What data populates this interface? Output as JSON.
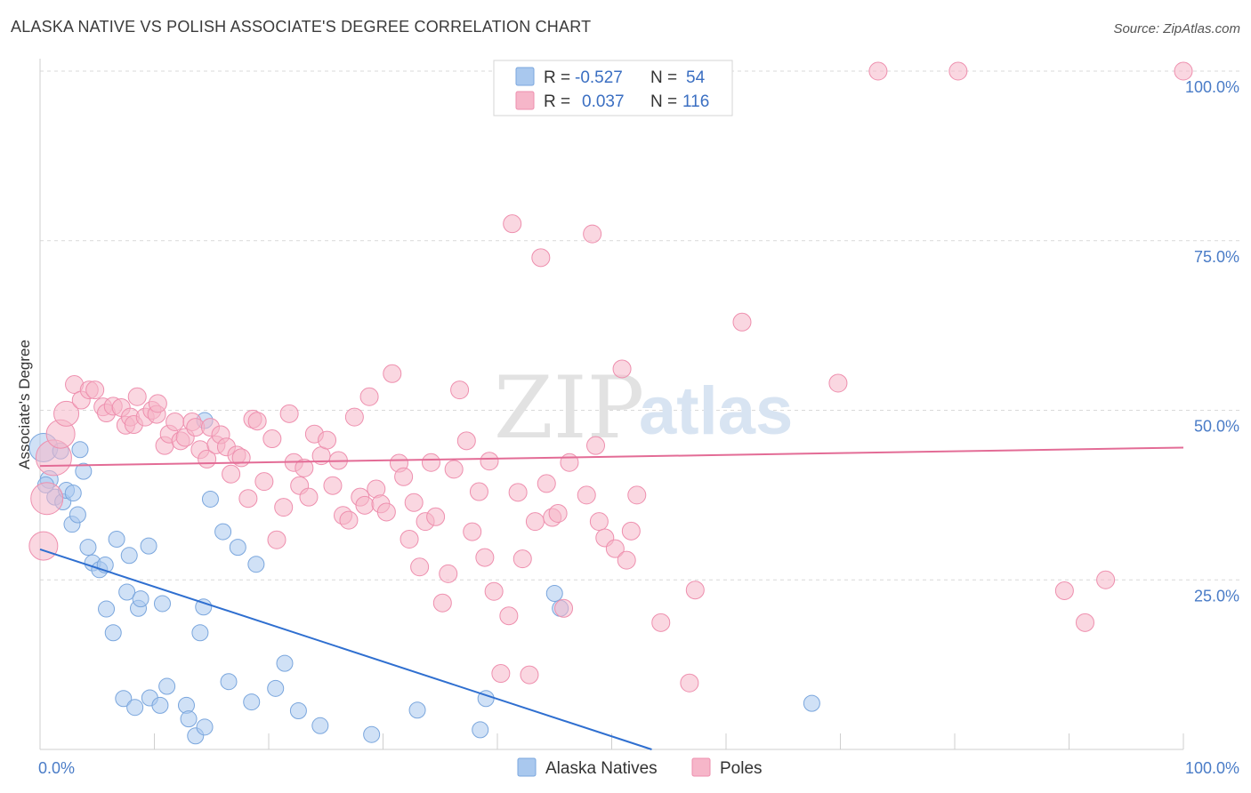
{
  "title": "ALASKA NATIVE VS POLISH ASSOCIATE'S DEGREE CORRELATION CHART",
  "source": "Source: ZipAtlas.com",
  "watermark": {
    "zip": "ZIP",
    "atlas": "atlas"
  },
  "legend": {
    "rows": [
      {
        "r_label": "R =",
        "r_value": "-0.527",
        "n_label": "N =",
        "n_value": "54"
      },
      {
        "r_label": "R =",
        "r_value": "0.037",
        "n_label": "N =",
        "n_value": "116"
      }
    ]
  },
  "bottom_legend": [
    "Alaska Natives",
    "Poles"
  ],
  "colors": {
    "blue_fill": "#a9c8ee",
    "blue_stroke": "#7aa6dd",
    "blue_line": "#2f6fd0",
    "pink_fill": "#f6b6c9",
    "pink_stroke": "#ee8fae",
    "pink_line": "#e36c96",
    "grid": "#d9d9d9",
    "tick_text": "#4a7cc7"
  },
  "chart_data": {
    "type": "scatter",
    "title": "ALASKA NATIVE VS POLISH ASSOCIATE'S DEGREE CORRELATION CHART",
    "xlabel": "",
    "ylabel": "Associate's Degree",
    "xlim": [
      0,
      100
    ],
    "ylim": [
      0,
      100
    ],
    "x_tick_labels": [
      "0.0%",
      "100.0%"
    ],
    "y_tick_labels": [
      "25.0%",
      "50.0%",
      "75.0%",
      "100.0%"
    ],
    "y_ticks": [
      25,
      50,
      75,
      100
    ],
    "grid": "dashed horizontal",
    "legend_position": "top-center",
    "series": [
      {
        "name": "Alaska Natives",
        "r": -0.527,
        "n": 54,
        "trend": {
          "x": [
            0,
            53.5
          ],
          "y": [
            29.5,
            0.0
          ]
        },
        "points": [
          [
            0.3,
            44.5,
            16
          ],
          [
            0.8,
            39.8,
            10
          ],
          [
            1.3,
            37.2,
            9
          ],
          [
            1.8,
            44.0,
            9
          ],
          [
            2.0,
            36.5,
            9
          ],
          [
            2.3,
            38.2,
            9
          ],
          [
            2.8,
            33.2,
            9
          ],
          [
            2.9,
            37.8,
            9
          ],
          [
            3.3,
            34.6,
            9
          ],
          [
            3.5,
            44.2,
            9
          ],
          [
            3.8,
            41.0,
            9
          ],
          [
            4.2,
            29.8,
            9
          ],
          [
            4.6,
            27.5,
            9
          ],
          [
            5.2,
            26.5,
            9
          ],
          [
            5.7,
            27.2,
            9
          ],
          [
            5.8,
            20.7,
            9
          ],
          [
            6.4,
            17.2,
            9
          ],
          [
            6.7,
            31.0,
            9
          ],
          [
            7.3,
            7.5,
            9
          ],
          [
            7.6,
            23.2,
            9
          ],
          [
            7.8,
            28.6,
            9
          ],
          [
            8.3,
            6.2,
            9
          ],
          [
            8.6,
            20.8,
            9
          ],
          [
            8.8,
            22.2,
            9
          ],
          [
            9.5,
            30.0,
            9
          ],
          [
            9.6,
            7.6,
            9
          ],
          [
            10.5,
            6.5,
            9
          ],
          [
            10.7,
            21.5,
            9
          ],
          [
            11.1,
            9.3,
            9
          ],
          [
            12.8,
            6.5,
            9
          ],
          [
            13.0,
            4.5,
            9
          ],
          [
            13.6,
            2.0,
            9
          ],
          [
            14.0,
            17.2,
            9
          ],
          [
            14.3,
            21.0,
            9
          ],
          [
            14.4,
            3.3,
            9
          ],
          [
            14.9,
            36.9,
            9
          ],
          [
            14.4,
            48.5,
            9
          ],
          [
            16.0,
            32.1,
            9
          ],
          [
            16.5,
            10.0,
            9
          ],
          [
            17.3,
            29.8,
            9
          ],
          [
            18.9,
            27.3,
            9
          ],
          [
            18.5,
            7.0,
            9
          ],
          [
            20.6,
            9.0,
            9
          ],
          [
            21.4,
            12.7,
            9
          ],
          [
            22.6,
            5.7,
            9
          ],
          [
            24.5,
            3.5,
            9
          ],
          [
            29.0,
            2.2,
            9
          ],
          [
            33.0,
            5.8,
            9
          ],
          [
            38.5,
            2.9,
            9
          ],
          [
            39.0,
            7.5,
            9
          ],
          [
            45.0,
            23.0,
            9
          ],
          [
            45.5,
            20.8,
            9
          ],
          [
            67.5,
            6.8,
            9
          ],
          [
            0.5,
            39.0,
            9
          ]
        ]
      },
      {
        "name": "Poles",
        "r": 0.037,
        "n": 116,
        "trend": {
          "x": [
            0,
            100
          ],
          "y": [
            41.8,
            44.5
          ]
        },
        "points": [
          [
            0.3,
            30.0,
            16
          ],
          [
            0.6,
            37.0,
            18
          ],
          [
            1.2,
            43.0,
            20
          ],
          [
            1.8,
            46.5,
            16
          ],
          [
            2.3,
            49.5,
            14
          ],
          [
            3.0,
            53.8,
            10
          ],
          [
            3.6,
            51.5,
            10
          ],
          [
            4.3,
            53.0,
            10
          ],
          [
            4.8,
            53.0,
            10
          ],
          [
            5.5,
            50.5,
            10
          ],
          [
            5.8,
            49.6,
            10
          ],
          [
            6.4,
            50.6,
            10
          ],
          [
            7.1,
            50.4,
            10
          ],
          [
            7.5,
            47.8,
            10
          ],
          [
            7.9,
            49.0,
            10
          ],
          [
            8.2,
            47.9,
            10
          ],
          [
            8.5,
            52.0,
            10
          ],
          [
            9.2,
            49.0,
            10
          ],
          [
            9.8,
            50.0,
            10
          ],
          [
            10.2,
            49.4,
            10
          ],
          [
            10.3,
            51.0,
            10
          ],
          [
            10.9,
            44.8,
            10
          ],
          [
            11.3,
            46.5,
            10
          ],
          [
            11.8,
            48.3,
            10
          ],
          [
            12.3,
            45.5,
            10
          ],
          [
            12.7,
            46.0,
            10
          ],
          [
            13.3,
            48.3,
            10
          ],
          [
            13.6,
            47.5,
            10
          ],
          [
            14.0,
            44.2,
            10
          ],
          [
            14.6,
            42.8,
            10
          ],
          [
            14.9,
            47.5,
            10
          ],
          [
            15.4,
            44.9,
            10
          ],
          [
            15.8,
            46.4,
            10
          ],
          [
            16.3,
            44.6,
            10
          ],
          [
            16.7,
            40.6,
            10
          ],
          [
            17.2,
            43.4,
            10
          ],
          [
            17.6,
            43.0,
            10
          ],
          [
            18.2,
            37.0,
            10
          ],
          [
            18.6,
            48.7,
            10
          ],
          [
            19.0,
            48.4,
            10
          ],
          [
            19.6,
            39.5,
            10
          ],
          [
            20.3,
            45.8,
            10
          ],
          [
            20.7,
            30.9,
            10
          ],
          [
            21.3,
            35.7,
            10
          ],
          [
            21.8,
            49.5,
            10
          ],
          [
            22.2,
            42.3,
            10
          ],
          [
            22.7,
            38.9,
            10
          ],
          [
            23.1,
            41.5,
            10
          ],
          [
            23.5,
            37.2,
            10
          ],
          [
            24.0,
            46.5,
            10
          ],
          [
            24.6,
            43.3,
            10
          ],
          [
            25.1,
            45.6,
            10
          ],
          [
            25.6,
            38.9,
            10
          ],
          [
            26.1,
            42.6,
            10
          ],
          [
            26.5,
            34.5,
            10
          ],
          [
            27.0,
            33.8,
            10
          ],
          [
            27.5,
            49.0,
            10
          ],
          [
            28.0,
            37.2,
            10
          ],
          [
            28.4,
            36.0,
            10
          ],
          [
            28.8,
            52.0,
            10
          ],
          [
            29.4,
            38.4,
            10
          ],
          [
            29.8,
            36.2,
            10
          ],
          [
            30.3,
            35.0,
            10
          ],
          [
            30.8,
            55.4,
            10
          ],
          [
            31.4,
            42.2,
            10
          ],
          [
            31.8,
            40.2,
            10
          ],
          [
            32.3,
            31.0,
            10
          ],
          [
            32.7,
            36.4,
            10
          ],
          [
            33.2,
            26.9,
            10
          ],
          [
            33.7,
            33.6,
            10
          ],
          [
            34.2,
            42.3,
            10
          ],
          [
            34.6,
            34.3,
            10
          ],
          [
            35.2,
            21.6,
            10
          ],
          [
            35.7,
            25.9,
            10
          ],
          [
            36.2,
            41.3,
            10
          ],
          [
            36.7,
            53.0,
            10
          ],
          [
            37.3,
            45.5,
            10
          ],
          [
            37.8,
            32.1,
            10
          ],
          [
            38.4,
            38.0,
            10
          ],
          [
            38.9,
            28.3,
            10
          ],
          [
            39.3,
            42.5,
            10
          ],
          [
            39.7,
            23.3,
            10
          ],
          [
            40.3,
            11.2,
            10
          ],
          [
            41.0,
            19.7,
            10
          ],
          [
            41.3,
            77.5,
            10
          ],
          [
            41.8,
            37.9,
            10
          ],
          [
            42.2,
            28.1,
            10
          ],
          [
            42.8,
            11.0,
            10
          ],
          [
            43.3,
            33.6,
            10
          ],
          [
            43.8,
            72.5,
            10
          ],
          [
            44.3,
            39.2,
            10
          ],
          [
            44.8,
            34.2,
            10
          ],
          [
            45.3,
            34.8,
            10
          ],
          [
            45.8,
            20.8,
            10
          ],
          [
            46.3,
            42.3,
            10
          ],
          [
            47.8,
            37.5,
            10
          ],
          [
            48.3,
            76.0,
            10
          ],
          [
            48.6,
            44.8,
            10
          ],
          [
            48.9,
            33.6,
            10
          ],
          [
            49.4,
            31.2,
            10
          ],
          [
            50.3,
            29.6,
            10
          ],
          [
            50.9,
            56.1,
            10
          ],
          [
            51.3,
            27.9,
            10
          ],
          [
            51.7,
            32.2,
            10
          ],
          [
            52.2,
            37.5,
            10
          ],
          [
            54.3,
            18.7,
            10
          ],
          [
            56.8,
            9.8,
            10
          ],
          [
            57.3,
            23.5,
            10
          ],
          [
            61.4,
            63.0,
            10
          ],
          [
            69.8,
            54.0,
            10
          ],
          [
            73.3,
            100.0,
            10
          ],
          [
            80.3,
            100.0,
            10
          ],
          [
            89.6,
            23.4,
            10
          ],
          [
            91.4,
            18.7,
            10
          ],
          [
            93.2,
            25.0,
            10
          ],
          [
            100.0,
            100.0,
            10
          ]
        ]
      }
    ]
  }
}
